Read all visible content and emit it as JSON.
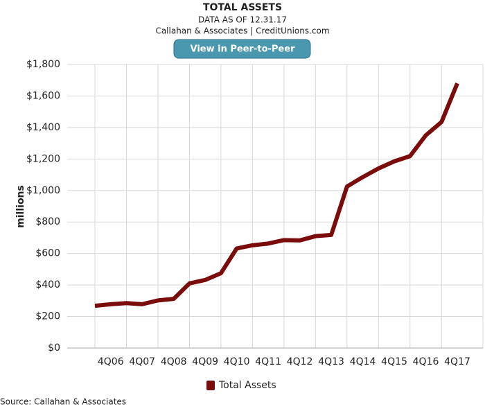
{
  "chart_data": {
    "type": "line",
    "title": "TOTAL ASSETS",
    "subtitle": "DATA AS OF 12.31.17",
    "credit": "Callahan & Associates | CreditUnions.com",
    "button": "View in Peer-to-Peer",
    "y_label": "millions",
    "source": "Source: Callahan & Associates",
    "categories": [
      null,
      "4Q06",
      null,
      "4Q07",
      null,
      "4Q08",
      null,
      "4Q09",
      null,
      "4Q10",
      null,
      "4Q11",
      null,
      "4Q12",
      null,
      "4Q13",
      null,
      "4Q14",
      null,
      "4Q15",
      null,
      "4Q16",
      null,
      "4Q17"
    ],
    "series": [
      {
        "name": "Total Assets",
        "color": "#7a0c0c",
        "values": [
          268,
          278,
          285,
          278,
          302,
          312,
          410,
          432,
          475,
          632,
          652,
          663,
          685,
          683,
          710,
          718,
          1025,
          1085,
          1140,
          1185,
          1218,
          1350,
          1435,
          1680
        ]
      }
    ],
    "ylim": [
      0,
      1800
    ],
    "yticks": [
      {
        "value": 0,
        "label": "$0"
      },
      {
        "value": 200,
        "label": "$200"
      },
      {
        "value": 400,
        "label": "$400"
      },
      {
        "value": 600,
        "label": "$600"
      },
      {
        "value": 800,
        "label": "$800"
      },
      {
        "value": 1000,
        "label": "$1,000"
      },
      {
        "value": 1200,
        "label": "$1,200"
      },
      {
        "value": 1400,
        "label": "$1,400"
      },
      {
        "value": 1600,
        "label": "$1,600"
      },
      {
        "value": 1800,
        "label": "$1,800"
      }
    ],
    "grid": true,
    "legend": "bottom"
  }
}
